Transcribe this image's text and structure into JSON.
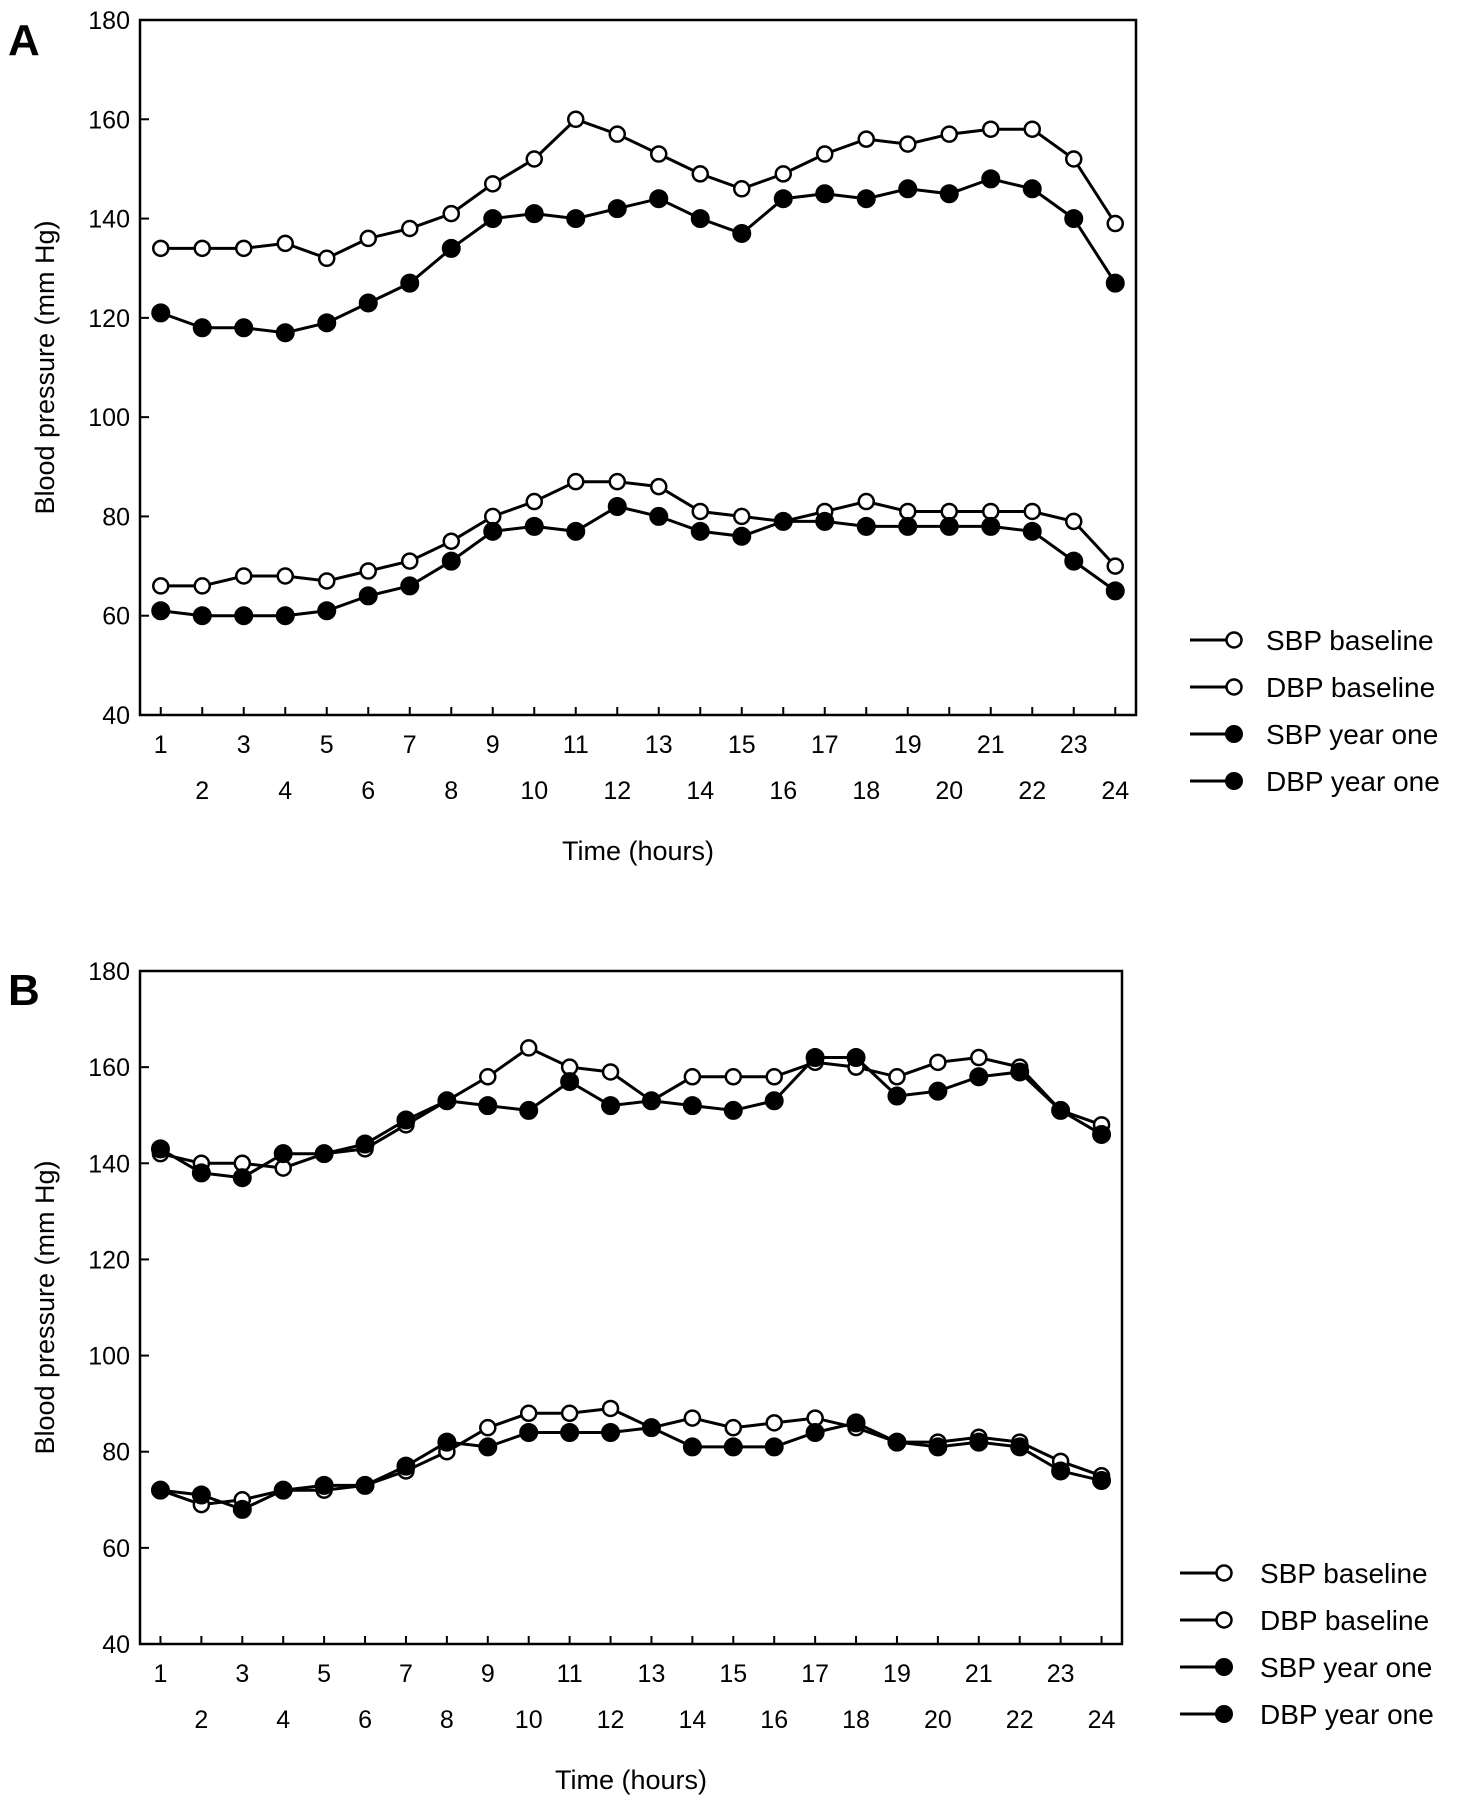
{
  "chart_data": [
    {
      "type": "line",
      "panel_label": "A",
      "xlabel": "Time (hours)",
      "ylabel": "Blood pressure (mm Hg)",
      "ylim": [
        40,
        180
      ],
      "yticks": [
        40,
        60,
        80,
        100,
        120,
        140,
        160,
        180
      ],
      "x": [
        1,
        2,
        3,
        4,
        5,
        6,
        7,
        8,
        9,
        10,
        11,
        12,
        13,
        14,
        15,
        16,
        17,
        18,
        19,
        20,
        21,
        22,
        23,
        24
      ],
      "legend": "right",
      "grid": false,
      "series": [
        {
          "name": "SBP baseline",
          "marker": "open",
          "values": [
            134,
            134,
            134,
            135,
            132,
            136,
            138,
            141,
            147,
            152,
            160,
            157,
            153,
            149,
            146,
            149,
            153,
            156,
            155,
            157,
            158,
            158,
            152,
            139
          ]
        },
        {
          "name": "DBP baseline",
          "marker": "open",
          "values": [
            66,
            66,
            68,
            68,
            67,
            69,
            71,
            75,
            80,
            83,
            87,
            87,
            86,
            81,
            80,
            79,
            81,
            83,
            81,
            81,
            81,
            81,
            79,
            70
          ]
        },
        {
          "name": "SBP year one",
          "marker": "filled",
          "values": [
            121,
            118,
            118,
            117,
            119,
            123,
            127,
            134,
            140,
            141,
            140,
            142,
            144,
            140,
            137,
            144,
            145,
            144,
            146,
            145,
            148,
            146,
            140,
            127
          ]
        },
        {
          "name": "DBP year one",
          "marker": "filled",
          "values": [
            61,
            60,
            60,
            60,
            61,
            64,
            66,
            71,
            77,
            78,
            77,
            82,
            80,
            77,
            76,
            79,
            79,
            78,
            78,
            78,
            78,
            77,
            71,
            65
          ]
        }
      ]
    },
    {
      "type": "line",
      "panel_label": "B",
      "xlabel": "Time (hours)",
      "ylabel": "Blood pressure (mm Hg)",
      "ylim": [
        40,
        180
      ],
      "yticks": [
        40,
        60,
        80,
        100,
        120,
        140,
        160,
        180
      ],
      "x": [
        1,
        2,
        3,
        4,
        5,
        6,
        7,
        8,
        9,
        10,
        11,
        12,
        13,
        14,
        15,
        16,
        17,
        18,
        19,
        20,
        21,
        22,
        23,
        24
      ],
      "legend": "bottom-right",
      "grid": false,
      "series": [
        {
          "name": "SBP baseline",
          "marker": "open",
          "values": [
            142,
            140,
            140,
            139,
            142,
            143,
            148,
            153,
            158,
            164,
            160,
            159,
            153,
            158,
            158,
            158,
            161,
            160,
            158,
            161,
            162,
            160,
            151,
            148
          ]
        },
        {
          "name": "DBP baseline",
          "marker": "open",
          "values": [
            72,
            69,
            70,
            72,
            72,
            73,
            76,
            80,
            85,
            88,
            88,
            89,
            85,
            87,
            85,
            86,
            87,
            85,
            82,
            82,
            83,
            82,
            78,
            75
          ]
        },
        {
          "name": "SBP year one",
          "marker": "filled",
          "values": [
            143,
            138,
            137,
            142,
            142,
            144,
            149,
            153,
            152,
            151,
            157,
            152,
            153,
            152,
            151,
            153,
            162,
            162,
            154,
            155,
            158,
            159,
            151,
            146
          ]
        },
        {
          "name": "DBP year one",
          "marker": "filled",
          "values": [
            72,
            71,
            68,
            72,
            73,
            73,
            77,
            82,
            81,
            84,
            84,
            84,
            85,
            81,
            81,
            81,
            84,
            86,
            82,
            81,
            82,
            81,
            76,
            74
          ]
        }
      ]
    }
  ]
}
